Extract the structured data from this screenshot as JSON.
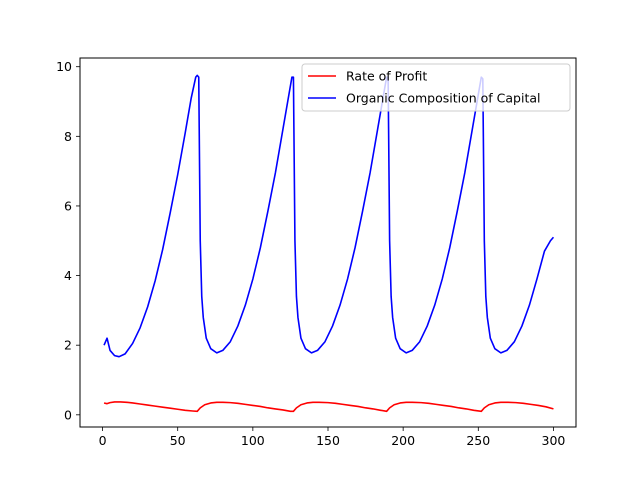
{
  "chart_data": {
    "type": "line",
    "title": "",
    "xlabel": "",
    "ylabel": "",
    "xlim": [
      -15,
      315
    ],
    "ylim": [
      -0.35,
      10.25
    ],
    "xticks": [
      0,
      50,
      100,
      150,
      200,
      250,
      300
    ],
    "yticks": [
      0,
      2,
      4,
      6,
      8,
      10
    ],
    "grid": false,
    "legend_position": "top-right",
    "series": [
      {
        "name": "Rate of Profit",
        "color": "#ff0000",
        "points": [
          [
            1,
            0.34
          ],
          [
            3,
            0.32
          ],
          [
            5,
            0.35
          ],
          [
            8,
            0.37
          ],
          [
            12,
            0.37
          ],
          [
            16,
            0.36
          ],
          [
            20,
            0.34
          ],
          [
            25,
            0.31
          ],
          [
            30,
            0.28
          ],
          [
            35,
            0.25
          ],
          [
            40,
            0.22
          ],
          [
            45,
            0.19
          ],
          [
            50,
            0.16
          ],
          [
            55,
            0.13
          ],
          [
            60,
            0.11
          ],
          [
            63,
            0.1
          ],
          [
            65,
            0.2
          ],
          [
            68,
            0.29
          ],
          [
            72,
            0.34
          ],
          [
            76,
            0.36
          ],
          [
            80,
            0.36
          ],
          [
            85,
            0.35
          ],
          [
            90,
            0.33
          ],
          [
            95,
            0.3
          ],
          [
            100,
            0.27
          ],
          [
            105,
            0.24
          ],
          [
            110,
            0.2
          ],
          [
            115,
            0.17
          ],
          [
            120,
            0.14
          ],
          [
            125,
            0.1
          ],
          [
            127,
            0.1
          ],
          [
            129,
            0.2
          ],
          [
            132,
            0.29
          ],
          [
            136,
            0.34
          ],
          [
            140,
            0.36
          ],
          [
            144,
            0.36
          ],
          [
            150,
            0.35
          ],
          [
            155,
            0.33
          ],
          [
            160,
            0.3
          ],
          [
            165,
            0.27
          ],
          [
            170,
            0.24
          ],
          [
            175,
            0.2
          ],
          [
            180,
            0.17
          ],
          [
            185,
            0.13
          ],
          [
            189,
            0.1
          ],
          [
            191,
            0.2
          ],
          [
            194,
            0.29
          ],
          [
            198,
            0.34
          ],
          [
            202,
            0.36
          ],
          [
            206,
            0.36
          ],
          [
            212,
            0.35
          ],
          [
            217,
            0.33
          ],
          [
            222,
            0.3
          ],
          [
            227,
            0.27
          ],
          [
            232,
            0.24
          ],
          [
            237,
            0.2
          ],
          [
            242,
            0.17
          ],
          [
            247,
            0.13
          ],
          [
            252,
            0.1
          ],
          [
            254,
            0.2
          ],
          [
            257,
            0.29
          ],
          [
            261,
            0.34
          ],
          [
            265,
            0.36
          ],
          [
            269,
            0.36
          ],
          [
            275,
            0.35
          ],
          [
            280,
            0.33
          ],
          [
            285,
            0.3
          ],
          [
            290,
            0.27
          ],
          [
            295,
            0.23
          ],
          [
            300,
            0.17
          ]
        ]
      },
      {
        "name": "Organic Composition of Capital",
        "color": "#0000ff",
        "points": [
          [
            1,
            2
          ],
          [
            3,
            2.2
          ],
          [
            5,
            1.85
          ],
          [
            8,
            1.7
          ],
          [
            11,
            1.67
          ],
          [
            15,
            1.75
          ],
          [
            20,
            2.05
          ],
          [
            25,
            2.5
          ],
          [
            30,
            3.1
          ],
          [
            35,
            3.85
          ],
          [
            40,
            4.75
          ],
          [
            45,
            5.8
          ],
          [
            50,
            6.9
          ],
          [
            55,
            8.1
          ],
          [
            59,
            9.1
          ],
          [
            62,
            9.7
          ],
          [
            63,
            9.75
          ],
          [
            64,
            9.7
          ],
          [
            65,
            5
          ],
          [
            66,
            3.4
          ],
          [
            67,
            2.8
          ],
          [
            69,
            2.2
          ],
          [
            72,
            1.9
          ],
          [
            76,
            1.78
          ],
          [
            80,
            1.85
          ],
          [
            85,
            2.1
          ],
          [
            90,
            2.55
          ],
          [
            95,
            3.15
          ],
          [
            100,
            3.9
          ],
          [
            105,
            4.8
          ],
          [
            110,
            5.85
          ],
          [
            115,
            6.95
          ],
          [
            120,
            8.2
          ],
          [
            124,
            9.2
          ],
          [
            126,
            9.7
          ],
          [
            127,
            9.7
          ],
          [
            128,
            5
          ],
          [
            129,
            3.4
          ],
          [
            130,
            2.8
          ],
          [
            132,
            2.2
          ],
          [
            135,
            1.9
          ],
          [
            139,
            1.78
          ],
          [
            143,
            1.85
          ],
          [
            148,
            2.1
          ],
          [
            153,
            2.55
          ],
          [
            158,
            3.15
          ],
          [
            163,
            3.9
          ],
          [
            168,
            4.8
          ],
          [
            173,
            5.85
          ],
          [
            178,
            6.95
          ],
          [
            183,
            8.2
          ],
          [
            187,
            9.2
          ],
          [
            189,
            9.7
          ],
          [
            190,
            9.7
          ],
          [
            191,
            5
          ],
          [
            192,
            3.4
          ],
          [
            193,
            2.8
          ],
          [
            195,
            2.2
          ],
          [
            198,
            1.9
          ],
          [
            202,
            1.78
          ],
          [
            206,
            1.85
          ],
          [
            211,
            2.1
          ],
          [
            216,
            2.55
          ],
          [
            221,
            3.15
          ],
          [
            226,
            3.9
          ],
          [
            231,
            4.8
          ],
          [
            236,
            5.85
          ],
          [
            241,
            6.95
          ],
          [
            246,
            8.2
          ],
          [
            250,
            9.2
          ],
          [
            252,
            9.7
          ],
          [
            253,
            9.65
          ],
          [
            254,
            5
          ],
          [
            255,
            3.4
          ],
          [
            256,
            2.8
          ],
          [
            258,
            2.2
          ],
          [
            261,
            1.9
          ],
          [
            265,
            1.78
          ],
          [
            269,
            1.85
          ],
          [
            274,
            2.1
          ],
          [
            279,
            2.55
          ],
          [
            284,
            3.15
          ],
          [
            289,
            3.9
          ],
          [
            294,
            4.7
          ],
          [
            298,
            5.0
          ],
          [
            300,
            5.1
          ]
        ]
      }
    ]
  }
}
